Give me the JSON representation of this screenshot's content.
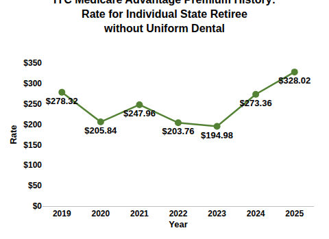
{
  "chart_data": {
    "type": "line",
    "title": "IYC Medicare Advantage Premium History:\nRate for Individual State Retiree\nwithout Uniform Dental",
    "x_label": "Year",
    "y_label": "Rate",
    "categories": [
      "2019",
      "2020",
      "2021",
      "2022",
      "2023",
      "2024",
      "2025"
    ],
    "values": [
      278.32,
      205.84,
      247.96,
      203.76,
      194.98,
      273.36,
      328.02
    ],
    "value_labels": [
      "$278.32",
      "$205.84",
      "$247.96",
      "$203.76",
      "$194.98",
      "$273.36",
      "$328.02"
    ],
    "data_labels": true,
    "color": "#548235",
    "marker": "circle",
    "line_style": "solid",
    "ylim": [
      0,
      350
    ],
    "yticks": [
      {
        "value": 0,
        "label": "$0"
      },
      {
        "value": 50,
        "label": "$50"
      },
      {
        "value": 100,
        "label": "$100"
      },
      {
        "value": 150,
        "label": "$150"
      },
      {
        "value": 200,
        "label": "$200"
      },
      {
        "value": 250,
        "label": "$250"
      },
      {
        "value": 300,
        "label": "$300"
      },
      {
        "value": 350,
        "label": "$350"
      }
    ],
    "grid": false
  }
}
